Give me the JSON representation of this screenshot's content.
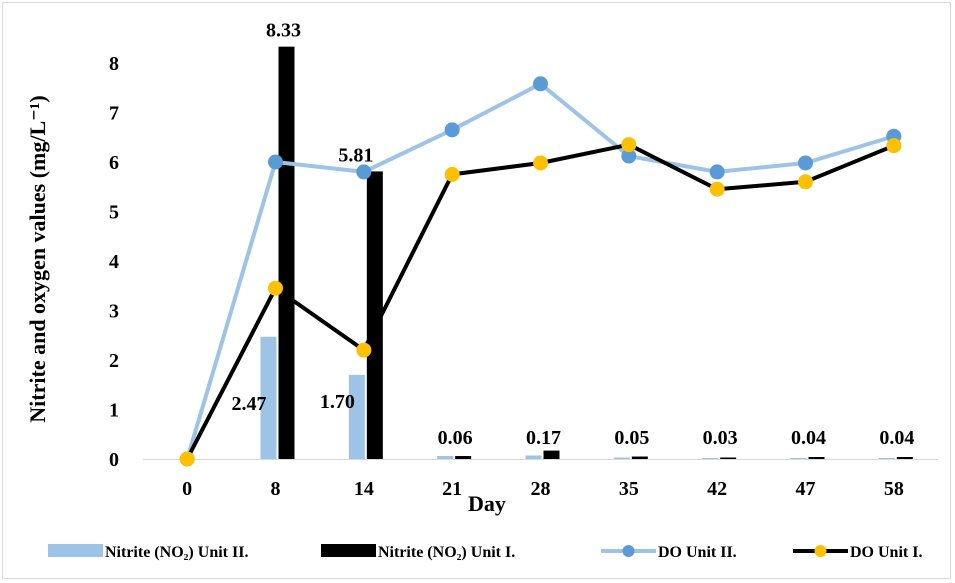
{
  "chart_data": {
    "type": "bar",
    "categories": [
      "0",
      "8",
      "14",
      "21",
      "28",
      "35",
      "42",
      "47",
      "58"
    ],
    "xlabel": "Day",
    "ylabel": "Nitrite and oxygen values (mg/L⁻¹)",
    "ylim": [
      0,
      8
    ],
    "yticks": [
      "0",
      "1",
      "2",
      "3",
      "4",
      "5",
      "6",
      "7",
      "8"
    ],
    "grid": false,
    "legend_position": "bottom",
    "series": [
      {
        "name": "Nitrite (NO₂) Unit II.",
        "kind": "bar",
        "color": "#9dc3e6",
        "values": [
          0,
          2.47,
          1.7,
          0.06,
          0.07,
          0.03,
          0.02,
          0.02,
          0.02
        ],
        "labels": [
          "",
          "2.47",
          "1.70",
          "",
          "",
          "",
          "",
          "",
          ""
        ]
      },
      {
        "name": "Nitrite (NO₂) Unit I.",
        "kind": "bar",
        "color": "#000000",
        "values": [
          0,
          8.33,
          5.81,
          0.06,
          0.17,
          0.05,
          0.03,
          0.04,
          0.04
        ],
        "labels": [
          "",
          "8.33",
          "5.81",
          "0.06",
          "0.17",
          "0.05",
          "0.03",
          "0.04",
          "0.04"
        ]
      },
      {
        "name": "DO Unit II.",
        "kind": "line",
        "color": "#9dc3e6",
        "marker_color": "#5b9bd5",
        "values": [
          0,
          6.0,
          5.8,
          6.65,
          7.58,
          6.12,
          5.8,
          5.98,
          6.52
        ]
      },
      {
        "name": "DO Unit I.",
        "kind": "line",
        "color": "#000000",
        "marker_color": "#ffc000",
        "values": [
          0,
          3.45,
          2.2,
          5.75,
          5.98,
          6.35,
          5.45,
          5.6,
          6.33
        ]
      }
    ]
  }
}
